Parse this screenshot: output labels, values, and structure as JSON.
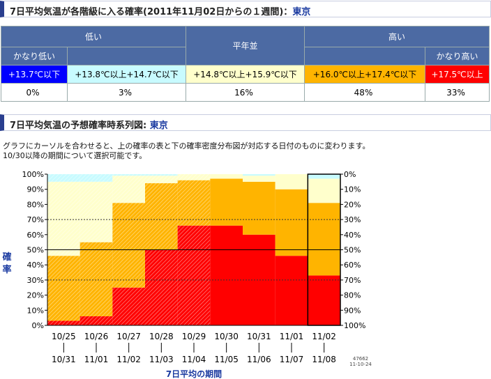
{
  "header1": {
    "prefix": "7日平均気温が各階級に入る確率(2011年11月02日からの１週間)",
    "sep": "：",
    "city": "東京"
  },
  "table": {
    "groups": [
      "低い",
      "平年並",
      "高い"
    ],
    "sublabels": [
      "かなり低い",
      "かなり高い"
    ],
    "classes": [
      {
        "label": "+13.7℃以下",
        "value": "0%",
        "color": "#0000ff",
        "text": "#ffffff"
      },
      {
        "label": "+13.8℃以上+14.7℃以下",
        "value": "3%",
        "color": "#c8fbff",
        "text": "#000000"
      },
      {
        "label": "+14.8℃以上+15.9℃以下",
        "value": "16%",
        "color": "#ffffcc",
        "text": "#000000"
      },
      {
        "label": "+16.0℃以上+17.4℃以下",
        "value": "48%",
        "color": "#ffb400",
        "text": "#000000"
      },
      {
        "label": "+17.5℃以上",
        "value": "33%",
        "color": "#ff0000",
        "text": "#ffffff"
      }
    ]
  },
  "header2": {
    "prefix": "7日平均気温の予想確率時系列図",
    "sep": ":",
    "city": "東京"
  },
  "notes": [
    "グラフにカーソルを合わせると、上の確率の表と下の確率密度分布図が対応する日付のものに変わります。",
    "10/30以降の期間について選択可能です。"
  ],
  "chart_data": {
    "type": "area",
    "ylabel": "確率",
    "xlabel": "7日平均の期間",
    "left_ticks": [
      "100%",
      "90%",
      "80%",
      "70%",
      "60%",
      "50%",
      "40%",
      "30%",
      "20%",
      "10%",
      "0%"
    ],
    "right_ticks": [
      "0%",
      "10%",
      "20%",
      "30%",
      "40%",
      "50%",
      "60%",
      "70%",
      "80%",
      "90%",
      "100%"
    ],
    "ylim": [
      0,
      100
    ],
    "periods_start": [
      "10/25",
      "10/26",
      "10/27",
      "10/28",
      "10/29",
      "10/30",
      "10/31",
      "11/01",
      "11/02"
    ],
    "periods_end": [
      "10/31",
      "11/01",
      "11/02",
      "11/03",
      "11/04",
      "11/05",
      "11/06",
      "11/07",
      "11/08"
    ],
    "hatched_periods": 5,
    "selected_index": 8,
    "series": [
      {
        "name": "かなり高い",
        "color": "#ff0000",
        "values": [
          3,
          6,
          25,
          50,
          66,
          66,
          60,
          46,
          33
        ]
      },
      {
        "name": "高い",
        "color": "#ffb400",
        "values": [
          43,
          49,
          56,
          44,
          30,
          31,
          35,
          44,
          48
        ]
      },
      {
        "name": "平年並",
        "color": "#ffffcc",
        "values": [
          49,
          40,
          18,
          5,
          4,
          3,
          4,
          10,
          16
        ]
      },
      {
        "name": "低い",
        "color": "#c8fbff",
        "values": [
          5,
          5,
          1,
          1,
          0,
          0,
          1,
          0,
          3
        ]
      }
    ],
    "stamp": [
      "47662",
      "11-10-24"
    ]
  }
}
